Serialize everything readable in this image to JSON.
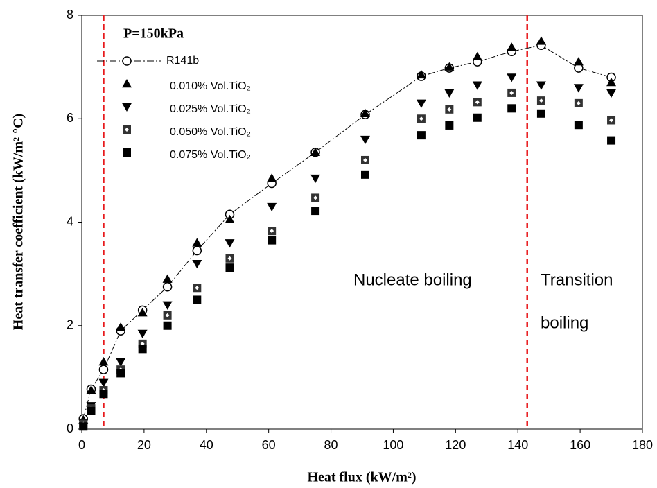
{
  "chart_data": {
    "type": "scatter",
    "x_label": "Heat flux (kW/m²)",
    "y_label": "Heat transfer coefficient (kW/m² °C)",
    "legend_title": "P=150kPa",
    "xlim": [
      0,
      180
    ],
    "xticks": [
      0,
      20,
      40,
      60,
      80,
      100,
      120,
      140,
      160,
      180
    ],
    "ylim": [
      0,
      8
    ],
    "yticks": [
      0,
      2,
      4,
      6,
      8
    ],
    "x": [
      0.5,
      3,
      7,
      12.5,
      19.5,
      27.5,
      37,
      47.5,
      61,
      75,
      91,
      109,
      118,
      127,
      138,
      147.5,
      159.5,
      170
    ],
    "series": [
      {
        "name": "R141b",
        "color": "#000000",
        "marker": "circle-open",
        "line": true,
        "values": [
          0.2,
          0.77,
          1.15,
          1.9,
          2.3,
          2.75,
          3.45,
          4.15,
          4.75,
          5.35,
          6.08,
          6.82,
          6.98,
          7.1,
          7.3,
          7.42,
          6.98,
          6.8
        ]
      },
      {
        "name": "0.010% Vol.TiO₂",
        "color": "#000000",
        "marker": "triangle-up",
        "values": [
          0.18,
          0.75,
          1.3,
          1.97,
          2.25,
          2.9,
          3.6,
          4.05,
          4.85,
          5.35,
          6.1,
          6.85,
          7.0,
          7.2,
          7.38,
          7.5,
          7.1,
          6.7
        ]
      },
      {
        "name": "0.025% Vol.TiO₂",
        "color": "#000000",
        "marker": "triangle-down",
        "values": [
          0.12,
          0.45,
          0.9,
          1.3,
          1.85,
          2.4,
          3.2,
          3.6,
          4.3,
          4.85,
          5.6,
          6.3,
          6.5,
          6.65,
          6.8,
          6.65,
          6.6,
          6.5
        ]
      },
      {
        "name": "0.050% Vol.TiO₂",
        "color": "#000000",
        "marker": "square-dot",
        "values": [
          0.1,
          0.4,
          0.75,
          1.15,
          1.65,
          2.2,
          2.73,
          3.3,
          3.83,
          4.47,
          5.2,
          6.0,
          6.18,
          6.32,
          6.5,
          6.35,
          6.3,
          5.97
        ]
      },
      {
        "name": "0.075% Vol.TiO₂",
        "color": "#000000",
        "marker": "square",
        "values": [
          0.05,
          0.35,
          0.68,
          1.08,
          1.55,
          2.0,
          2.5,
          3.12,
          3.65,
          4.22,
          4.92,
          5.68,
          5.87,
          6.02,
          6.2,
          6.1,
          5.88,
          5.58
        ]
      }
    ],
    "vlines": [
      7,
      143
    ],
    "vline_color": "#e8191c",
    "annotations": [
      "Nucleate boiling",
      "Transition",
      "boiling"
    ]
  }
}
